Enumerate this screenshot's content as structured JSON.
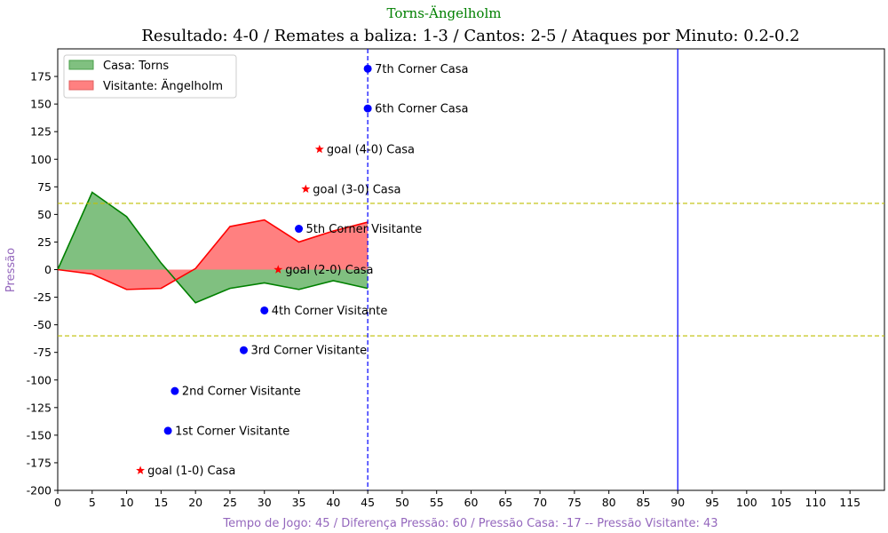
{
  "chart_data": {
    "type": "area",
    "suptitle": "Torns-Ängelholm",
    "title": "Resultado: 4-0 / Remates a baliza: 1-3 / Cantos: 2-5 / Ataques por Minuto: 0.2-0.2",
    "xlabel": "Tempo de Jogo: 45 / Diferença Pressão: 60 / Pressão Casa: -17 -- Pressão Visitante: 43",
    "ylabel": "Pressão",
    "xlim": [
      0,
      120
    ],
    "ylim": [
      -200,
      200
    ],
    "x_ticks": [
      0,
      5,
      10,
      15,
      20,
      25,
      30,
      35,
      40,
      45,
      50,
      55,
      60,
      65,
      70,
      75,
      80,
      85,
      90,
      95,
      100,
      105,
      110,
      115
    ],
    "y_ticks": [
      -200,
      -175,
      -150,
      -125,
      -100,
      -75,
      -50,
      -25,
      0,
      25,
      50,
      75,
      100,
      125,
      150,
      175
    ],
    "series": [
      {
        "name": "Casa: Torns",
        "color": "#008000",
        "fill": "#80c080",
        "x": [
          0,
          5,
          10,
          15,
          20,
          25,
          30,
          35,
          40,
          45
        ],
        "y": [
          0,
          70,
          48,
          6,
          -30,
          -17,
          -12,
          -18,
          -10,
          -17
        ]
      },
      {
        "name": "Visitante: Ängelholm",
        "color": "#ff0000",
        "fill": "#ff8080",
        "x": [
          0,
          5,
          10,
          15,
          20,
          25,
          30,
          35,
          40,
          45
        ],
        "y": [
          0,
          -4,
          -18,
          -17,
          1,
          39,
          45,
          25,
          35,
          43
        ]
      }
    ],
    "hlines": [
      {
        "y": 60,
        "color": "#bfbf00",
        "style": "dashed"
      },
      {
        "y": -60,
        "color": "#bfbf00",
        "style": "dashed"
      }
    ],
    "vlines": [
      {
        "x": 45,
        "color": "#0000ff",
        "style": "dashed"
      },
      {
        "x": 90,
        "color": "#0000ff",
        "style": "solid"
      }
    ],
    "events": [
      {
        "type": "goal",
        "x": 12,
        "y": -182,
        "label": "goal (1-0) Casa"
      },
      {
        "type": "corner",
        "x": 16,
        "y": -146,
        "label": "1st Corner Visitante"
      },
      {
        "type": "corner",
        "x": 17,
        "y": -110,
        "label": "2nd Corner Visitante"
      },
      {
        "type": "corner",
        "x": 27,
        "y": -73,
        "label": "3rd Corner Visitante"
      },
      {
        "type": "corner",
        "x": 30,
        "y": -37,
        "label": "4th Corner Visitante"
      },
      {
        "type": "goal",
        "x": 32,
        "y": 0,
        "label": "goal (2-0) Casa"
      },
      {
        "type": "corner",
        "x": 35,
        "y": 37,
        "label": "5th Corner Visitante"
      },
      {
        "type": "goal",
        "x": 36,
        "y": 73,
        "label": "goal (3-0) Casa"
      },
      {
        "type": "goal",
        "x": 38,
        "y": 109,
        "label": "goal (4-0) Casa"
      },
      {
        "type": "corner",
        "x": 45,
        "y": 146,
        "label": "6th Corner Casa"
      },
      {
        "type": "corner",
        "x": 45,
        "y": 182,
        "label": "7th Corner Casa"
      }
    ],
    "legend": {
      "placement": "top-left",
      "entries": [
        "Casa: Torns",
        "Visitante: Ängelholm"
      ]
    },
    "grid": false
  }
}
